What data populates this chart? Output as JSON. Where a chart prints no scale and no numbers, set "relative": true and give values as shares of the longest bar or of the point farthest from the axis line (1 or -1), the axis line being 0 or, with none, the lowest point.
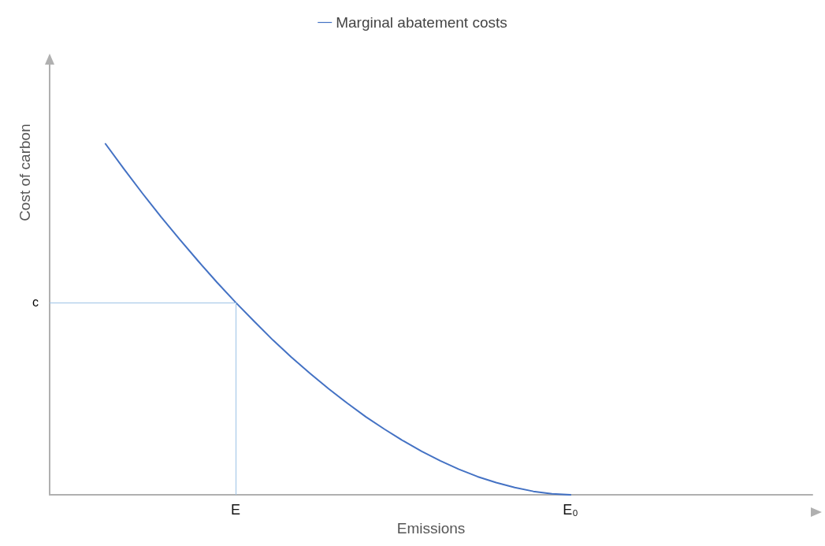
{
  "chart_data": {
    "type": "line",
    "relative": true,
    "xlabel": "Emissions",
    "ylabel": "Cost of carbon",
    "legend": "top",
    "marker": "none",
    "line_style": "solid",
    "grid": false,
    "categories": [
      null,
      null,
      null,
      null,
      null,
      null,
      null,
      null,
      null,
      null,
      "E",
      null,
      null,
      null,
      null,
      null,
      null,
      null,
      null,
      null,
      null,
      null,
      null,
      null,
      null,
      null,
      null,
      null,
      "E₀",
      null,
      null,
      null,
      null,
      null,
      null,
      null,
      null,
      null,
      null,
      null,
      null,
      null
    ],
    "series": [
      {
        "name": "Marginal abatement costs",
        "color": "#4472c4",
        "values": [
          null,
          null,
          null,
          1,
          0.928,
          0.858,
          0.791,
          0.727,
          0.665,
          0.605,
          0.548,
          0.494,
          0.441,
          0.392,
          0.346,
          0.302,
          0.261,
          0.222,
          0.187,
          0.154,
          0.124,
          0.097,
          0.073,
          0.052,
          0.035,
          0.021,
          0.01,
          0.003,
          0,
          null,
          null,
          null,
          null,
          null,
          null,
          null,
          null,
          null,
          null,
          null,
          null,
          null
        ]
      }
    ],
    "ref_lines": [
      {
        "axis": "y",
        "value": 0.548,
        "label": "c",
        "color": "#9dc3e6"
      },
      {
        "axis": "x",
        "value": "E",
        "color": "#9dc3e6"
      }
    ]
  }
}
